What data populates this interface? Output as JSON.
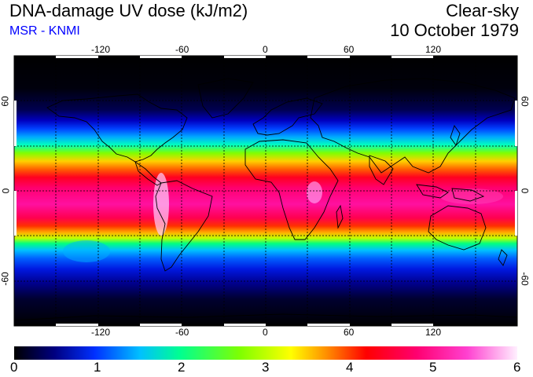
{
  "header": {
    "title": "DNA-damage UV dose (kJ/m2)",
    "subtitle": "MSR - KNMI",
    "condition": "Clear-sky",
    "date": "10 October 1979"
  },
  "map": {
    "projection": "equirectangular",
    "lon_range": [
      -180,
      180
    ],
    "lat_range": [
      -90,
      90
    ],
    "lon_ticks": [
      "-120",
      "-60",
      "0",
      "60",
      "120"
    ],
    "lat_ticks_left": [
      "60",
      "0",
      "-60"
    ],
    "lat_ticks_right": [
      "60",
      "0",
      "-60"
    ],
    "grid": "dashed every 30 degrees"
  },
  "colorbar": {
    "min": 0,
    "max": 6,
    "labels": [
      "0",
      "1",
      "2",
      "3",
      "4",
      "5",
      "6"
    ],
    "colors": [
      "#000000",
      "#0000a0",
      "#0050ff",
      "#00c8ff",
      "#00ff90",
      "#60ff00",
      "#e0ff00",
      "#ffc000",
      "#ff6000",
      "#ff0000",
      "#ff0080",
      "#ff40d0",
      "#ffe0ff"
    ]
  }
}
